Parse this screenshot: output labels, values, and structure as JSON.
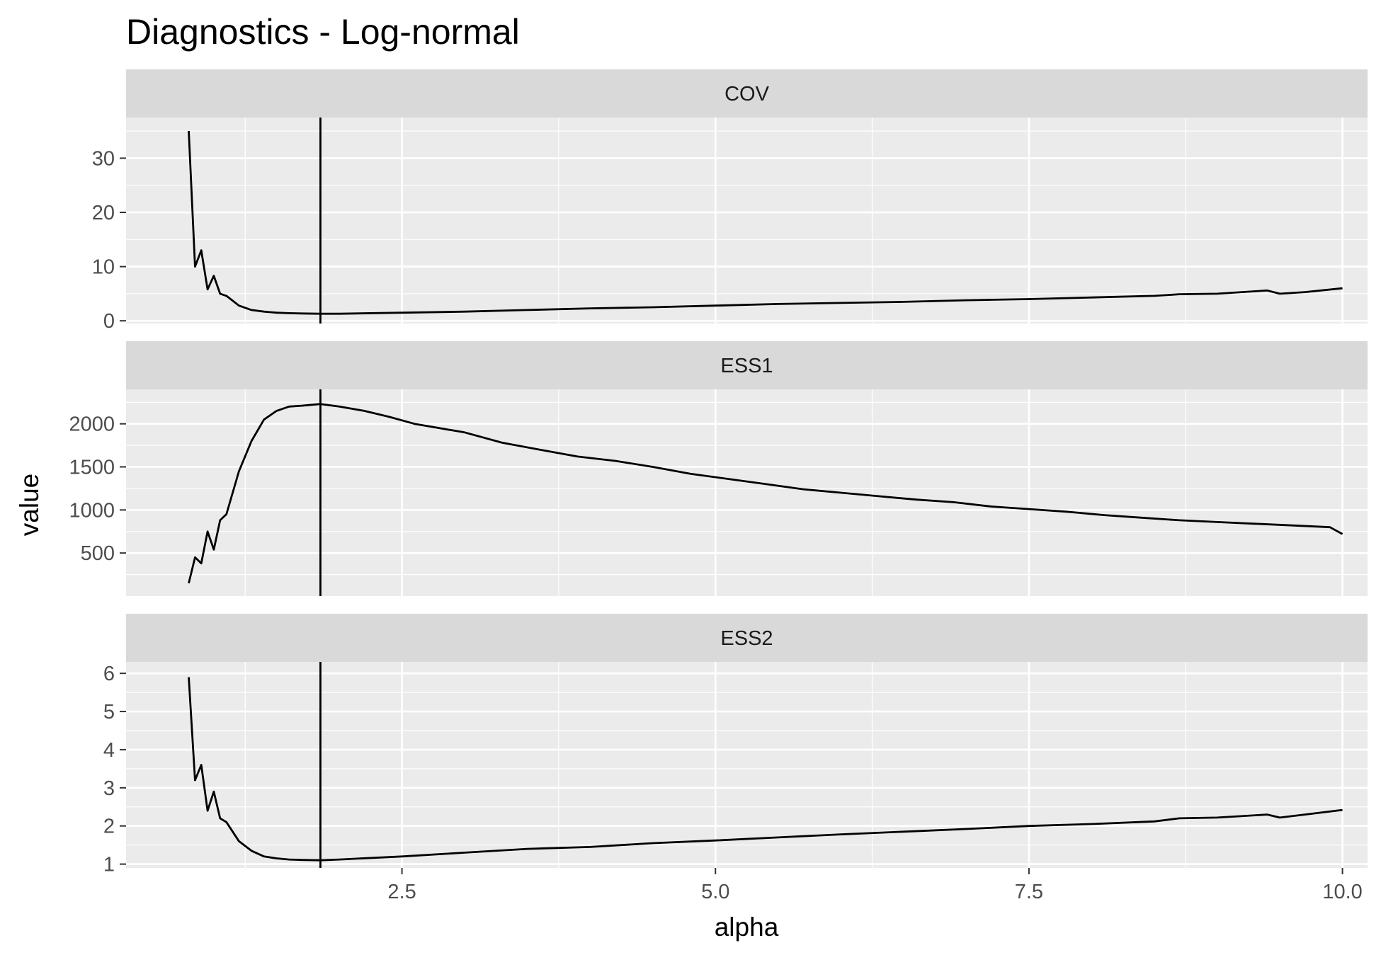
{
  "chart_data": {
    "type": "line",
    "title": "Diagnostics - Log-normal",
    "xlabel": "alpha",
    "ylabel": "value",
    "xlim": [
      0.3,
      10.2
    ],
    "x_ticks": [
      2.5,
      5.0,
      7.5,
      10.0
    ],
    "x_tick_labels": [
      "2.5",
      "5.0",
      "7.5",
      "10.0"
    ],
    "vline_x": 1.85,
    "grid": true,
    "legend": "none",
    "colors": {
      "panel_bg": "#EBEBEB",
      "strip_bg": "#D9D9D9",
      "grid": "#FFFFFF",
      "line": "#000000",
      "tick_label": "#4D4D4D"
    },
    "facets": [
      {
        "strip_label": "COV",
        "ylim": [
          -0.5,
          37.5
        ],
        "y_ticks": [
          0,
          10,
          20,
          30
        ],
        "y_tick_labels": [
          "0",
          "10",
          "20",
          "30"
        ],
        "x": [
          0.8,
          0.85,
          0.9,
          0.95,
          1.0,
          1.05,
          1.1,
          1.2,
          1.3,
          1.4,
          1.5,
          1.6,
          1.7,
          1.85,
          2.0,
          2.5,
          3.0,
          3.5,
          4.0,
          4.5,
          5.0,
          5.5,
          6.0,
          6.5,
          7.0,
          7.5,
          8.0,
          8.5,
          8.7,
          9.0,
          9.4,
          9.5,
          9.7,
          10.0
        ],
        "y": [
          35,
          10,
          13,
          5.8,
          8.3,
          5,
          4.6,
          2.8,
          2.0,
          1.7,
          1.5,
          1.4,
          1.35,
          1.3,
          1.3,
          1.5,
          1.7,
          2.0,
          2.3,
          2.5,
          2.8,
          3.1,
          3.3,
          3.5,
          3.8,
          4.0,
          4.3,
          4.6,
          4.9,
          5.0,
          5.6,
          5.0,
          5.3,
          6.0
        ]
      },
      {
        "strip_label": "ESS1",
        "ylim": [
          0,
          2400
        ],
        "y_ticks": [
          500,
          1000,
          1500,
          2000
        ],
        "y_tick_labels": [
          "500",
          "1000",
          "1500",
          "2000"
        ],
        "x": [
          0.8,
          0.85,
          0.9,
          0.95,
          1.0,
          1.05,
          1.1,
          1.2,
          1.3,
          1.4,
          1.5,
          1.6,
          1.7,
          1.85,
          2.0,
          2.2,
          2.4,
          2.6,
          2.8,
          3.0,
          3.3,
          3.6,
          3.9,
          4.2,
          4.5,
          4.8,
          5.1,
          5.4,
          5.7,
          6.0,
          6.3,
          6.6,
          6.9,
          7.2,
          7.5,
          7.8,
          8.1,
          8.4,
          8.7,
          9.0,
          9.3,
          9.6,
          9.9,
          10.0
        ],
        "y": [
          150,
          450,
          380,
          750,
          540,
          880,
          950,
          1450,
          1800,
          2050,
          2150,
          2200,
          2210,
          2230,
          2200,
          2150,
          2080,
          2000,
          1950,
          1900,
          1780,
          1700,
          1620,
          1570,
          1500,
          1420,
          1360,
          1300,
          1240,
          1200,
          1160,
          1120,
          1090,
          1040,
          1010,
          980,
          940,
          910,
          880,
          860,
          840,
          820,
          800,
          720
        ]
      },
      {
        "strip_label": "ESS2",
        "ylim": [
          0.9,
          6.3
        ],
        "y_ticks": [
          1,
          2,
          3,
          4,
          5,
          6
        ],
        "y_tick_labels": [
          "1",
          "2",
          "3",
          "4",
          "5",
          "6"
        ],
        "x": [
          0.8,
          0.85,
          0.9,
          0.95,
          1.0,
          1.05,
          1.1,
          1.2,
          1.3,
          1.4,
          1.5,
          1.6,
          1.7,
          1.85,
          2.0,
          2.5,
          3.0,
          3.5,
          4.0,
          4.5,
          5.0,
          5.5,
          6.0,
          6.5,
          7.0,
          7.5,
          8.0,
          8.5,
          8.7,
          9.0,
          9.4,
          9.5,
          9.7,
          10.0
        ],
        "y": [
          5.9,
          3.2,
          3.6,
          2.4,
          2.9,
          2.2,
          2.1,
          1.6,
          1.35,
          1.2,
          1.15,
          1.12,
          1.11,
          1.1,
          1.12,
          1.2,
          1.3,
          1.4,
          1.45,
          1.55,
          1.62,
          1.7,
          1.78,
          1.85,
          1.92,
          2.0,
          2.05,
          2.12,
          2.2,
          2.22,
          2.3,
          2.22,
          2.3,
          2.42
        ]
      }
    ]
  }
}
